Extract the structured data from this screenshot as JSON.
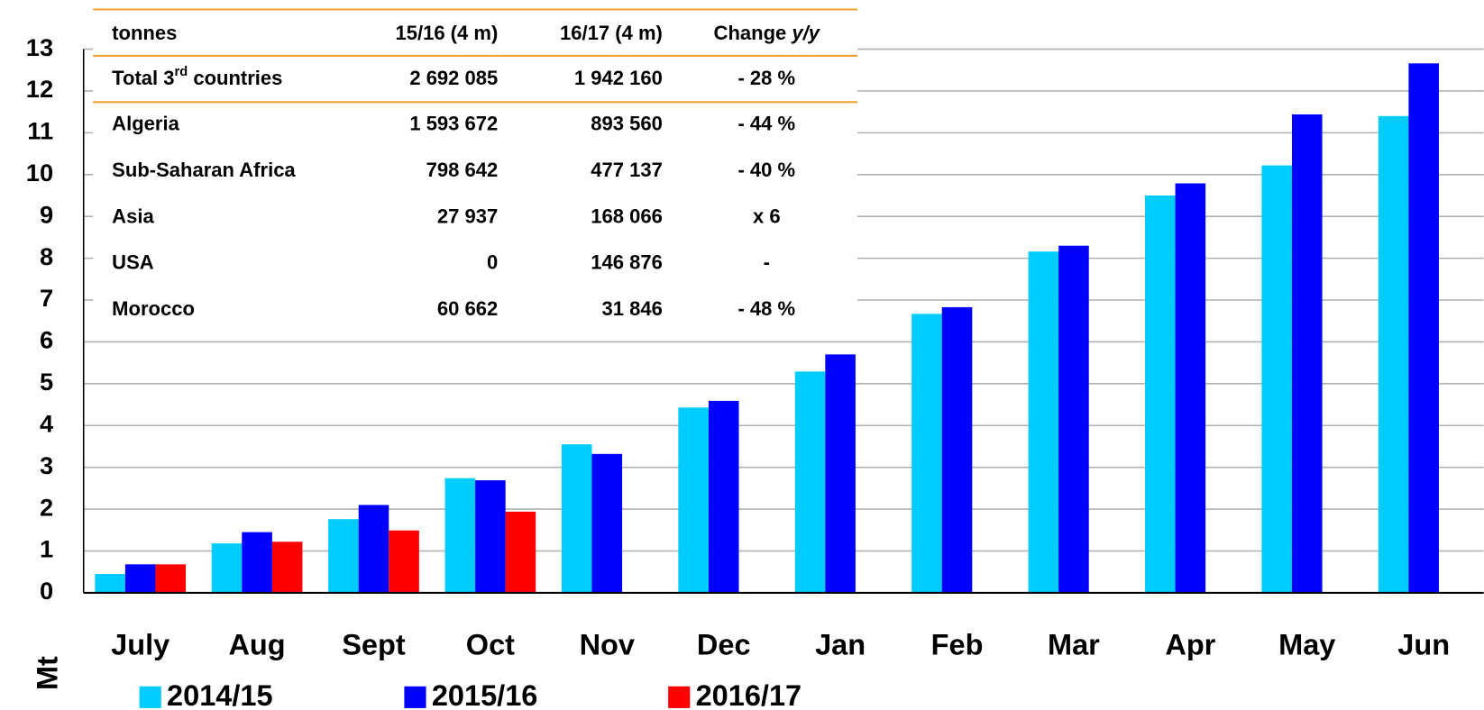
{
  "chart_data": {
    "type": "bar",
    "y_label": "Mt",
    "categories": [
      "July",
      "Aug",
      "Sept",
      "Oct",
      "Nov",
      "Dec",
      "Jan",
      "Feb",
      "Mar",
      "Apr",
      "May",
      "Jun"
    ],
    "series": [
      {
        "name": "2014/15",
        "color": "#00ccff",
        "values": [
          0.45,
          1.18,
          1.76,
          2.74,
          3.55,
          4.43,
          5.29,
          6.67,
          8.16,
          9.5,
          10.22,
          11.4
        ]
      },
      {
        "name": "2015/16",
        "color": "#0000ff",
        "values": [
          0.68,
          1.45,
          2.1,
          2.69,
          3.32,
          4.59,
          5.7,
          6.83,
          8.3,
          9.79,
          11.44,
          12.66
        ]
      },
      {
        "name": "2016/17",
        "color": "#ff0000",
        "values": [
          0.68,
          1.22,
          1.49,
          1.94,
          null,
          null,
          null,
          null,
          null,
          null,
          null,
          null
        ]
      }
    ],
    "ylim": [
      0,
      13
    ],
    "yticks": [
      0,
      1,
      2,
      3,
      4,
      5,
      6,
      7,
      8,
      9,
      10,
      11,
      12,
      13
    ],
    "grid": true
  },
  "table": {
    "header": [
      [
        "tonnes"
      ],
      [
        "15/16 (4 m)"
      ],
      [
        "16/17 (4 m)"
      ],
      [
        "Change ",
        "y/y"
      ]
    ],
    "rows": [
      [
        [
          "Total 3",
          "rd",
          " countries"
        ],
        [
          "2 692 085"
        ],
        [
          "1 942 160"
        ],
        [
          "- 28 %"
        ]
      ],
      [
        [
          "Algeria"
        ],
        [
          "1 593 672"
        ],
        [
          "893 560"
        ],
        [
          "- 44 %"
        ]
      ],
      [
        [
          "Sub-Saharan Africa"
        ],
        [
          "798 642"
        ],
        [
          "477 137"
        ],
        [
          "- 40 %"
        ]
      ],
      [
        [
          "Asia"
        ],
        [
          "27 937"
        ],
        [
          "168 066"
        ],
        [
          "x 6"
        ]
      ],
      [
        [
          "USA"
        ],
        [
          "0"
        ],
        [
          "146 876"
        ],
        [
          "-"
        ]
      ],
      [
        [
          "Morocco"
        ],
        [
          "60 662"
        ],
        [
          "31 846"
        ],
        [
          "- 48 %"
        ]
      ]
    ]
  }
}
